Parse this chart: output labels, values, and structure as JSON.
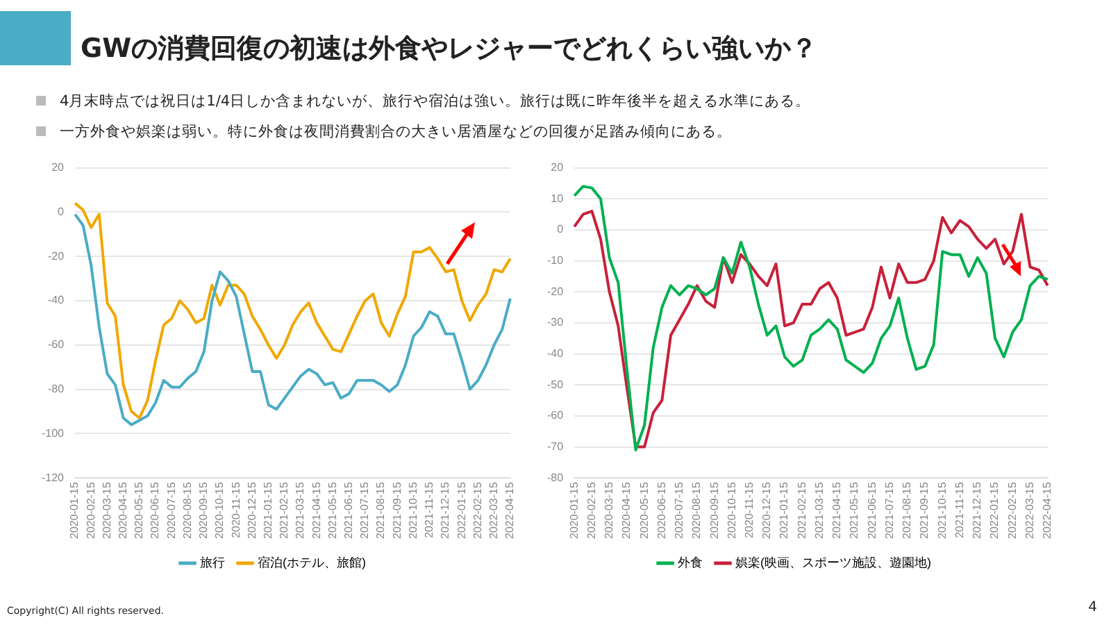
{
  "chart_data": [
    {
      "type": "line",
      "title": "GWの消費回復の初速は外食やレジャーでどれくらい強いか？",
      "annotations": [
        "4月末時点では祝日は1/4日しか含まれないが、旅行や宿泊は強い。旅行は既に昨年後半を超える水準にある。",
        "一方外食や娯楽は弱い。特に外食は夜間消費割合の大きい居酒屋などの回復が足踏み傾向にある。"
      ],
      "categories": [
        "2020-01-15",
        null,
        "2020-02-15",
        null,
        "2020-03-15",
        null,
        "2020-04-15",
        null,
        "2020-05-15",
        null,
        "2020-06-15",
        null,
        "2020-07-15",
        null,
        "2020-08-15",
        null,
        "2020-09-15",
        null,
        "2020-10-15",
        null,
        "2020-11-15",
        null,
        "2020-12-15",
        null,
        "2021-01-15",
        null,
        "2021-02-15",
        null,
        "2021-03-15",
        null,
        "2021-04-15",
        null,
        "2021-05-15",
        null,
        "2021-06-15",
        null,
        "2021-07-15",
        null,
        "2021-08-15",
        null,
        "2021-09-15",
        null,
        "2021-10-15",
        null,
        "2021-11-15",
        null,
        "2021-12-15",
        null,
        "2022-01-15",
        null,
        "2022-02-15",
        null,
        "2022-03-15",
        null,
        "2022-04-15"
      ],
      "series": [
        {
          "name": "旅行",
          "color": "#4bacc6",
          "values": [
            -1,
            -6,
            -24,
            -52,
            -73,
            -78,
            -93,
            -96,
            -94,
            -92,
            -86,
            -76,
            -79,
            -79,
            -75,
            -72,
            -63,
            -40,
            -27,
            -31,
            -38,
            -55,
            -72,
            -72,
            -87,
            -89,
            -84,
            -79,
            -74,
            -71,
            -73,
            -78,
            -77,
            -84,
            -82,
            -76,
            -76,
            -76,
            -78,
            -81,
            -78,
            -69,
            -56,
            -52,
            -45,
            -47,
            -55,
            -55,
            -67,
            -80,
            -76,
            -69,
            -60,
            -53,
            -39
          ]
        },
        {
          "name": "宿泊(ホテル、旅館)",
          "color": "#f0a800",
          "values": [
            4,
            1,
            -7,
            -1,
            -41,
            -47,
            -78,
            -90,
            -93,
            -85,
            -67,
            -51,
            -48,
            -40,
            -44,
            -50,
            -48,
            -33,
            -42,
            -33,
            -33,
            -37,
            -47,
            -53,
            -60,
            -66,
            -60,
            -51,
            -45,
            -41,
            -50,
            -56,
            -62,
            -63,
            -55,
            -47,
            -40,
            -37,
            -50,
            -56,
            -46,
            -38,
            -18,
            -18,
            -16,
            -21,
            -27,
            -26,
            -40,
            -49,
            -42,
            -37,
            -26,
            -27,
            -21
          ]
        }
      ],
      "ylim": [
        -120,
        20
      ],
      "yticks": [
        -120,
        -100,
        -80,
        -60,
        -40,
        -20,
        0,
        20
      ],
      "grid": "y",
      "legend": "bottom"
    },
    {
      "type": "line",
      "annotations": [
        "Copyright(C) All rights reserved.",
        "4"
      ],
      "categories": [
        "2020-01-15",
        null,
        "2020-02-15",
        null,
        "2020-03-15",
        null,
        "2020-04-15",
        null,
        "2020-05-15",
        null,
        "2020-06-15",
        null,
        "2020-07-15",
        null,
        "2020-08-15",
        null,
        "2020-09-15",
        null,
        "2020-10-15",
        null,
        "2020-11-15",
        null,
        "2020-12-15",
        null,
        "2021-01-15",
        null,
        "2021-02-15",
        null,
        "2021-03-15",
        null,
        "2021-04-15",
        null,
        "2021-05-15",
        null,
        "2021-06-15",
        null,
        "2021-07-15",
        null,
        "2021-08-15",
        null,
        "2021-09-15",
        null,
        "2021-10-15",
        null,
        "2021-11-15",
        null,
        "2021-12-15",
        null,
        "2022-01-15",
        null,
        "2022-02-15",
        null,
        "2022-03-15",
        null,
        "2022-04-15"
      ],
      "series": [
        {
          "name": "外食",
          "color": "#00b050",
          "values": [
            11,
            14,
            13.5,
            10,
            -9,
            -17,
            -45,
            -71,
            -63,
            -38,
            -25,
            -18,
            -21,
            -18,
            -19,
            -21,
            -19,
            -9,
            -14,
            -4,
            -12,
            -24,
            -34,
            -31,
            -41,
            -44,
            -42,
            -34,
            -32,
            -29,
            -32,
            -42,
            -44,
            -46,
            -43,
            -35,
            -31,
            -22,
            -35,
            -45,
            -44,
            -37,
            -7,
            -8,
            -8,
            -15,
            -9,
            -14,
            -35,
            -41,
            -33,
            -29,
            -18,
            -15,
            -16
          ]
        },
        {
          "name": "娯楽(映画、スポーツ施設、遊園地)",
          "color": "#c8203a",
          "values": [
            1,
            5,
            6,
            -3,
            -20,
            -31,
            -51,
            -70,
            -70,
            -59,
            -55,
            -34,
            -29,
            -24,
            -18,
            -23,
            -25,
            -9,
            -17,
            -8,
            -11,
            -15,
            -18,
            -11,
            -31,
            -30,
            -24,
            -24,
            -19,
            -17,
            -22,
            -34,
            -33,
            -32,
            -25,
            -12,
            -22,
            -11,
            -17,
            -17,
            -16,
            -10,
            4,
            -1,
            3,
            1,
            -3,
            -6,
            -3,
            -11,
            -7,
            5,
            -12,
            -13,
            -18
          ]
        }
      ],
      "ylim": [
        -80,
        20
      ],
      "yticks": [
        -80,
        -70,
        -60,
        -50,
        -40,
        -30,
        -20,
        -10,
        0,
        10,
        20
      ],
      "grid": "y",
      "legend": "bottom"
    }
  ]
}
